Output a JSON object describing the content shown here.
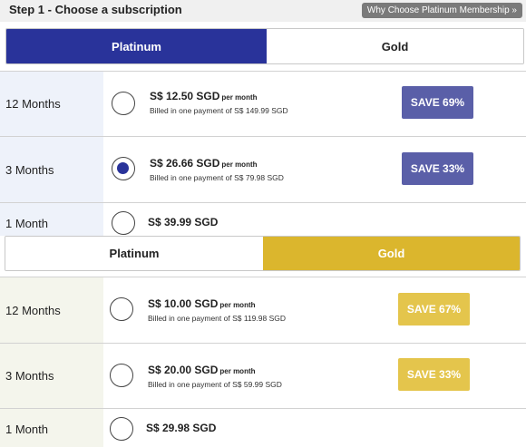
{
  "header": {
    "title": "Step 1 - Choose a subscription",
    "why_button": "Why Choose Platinum Membership »"
  },
  "platinum_section": {
    "tabs": [
      {
        "label": "Platinum",
        "selected": true
      },
      {
        "label": "Gold",
        "selected": false
      }
    ],
    "plans": [
      {
        "term": "12 Months",
        "price": "S$ 12.50 SGD",
        "per": "per month",
        "billed": "Billed in one payment of S$ 149.99 SGD",
        "save": "SAVE 69%",
        "selected": false
      },
      {
        "term": "3 Months",
        "price": "S$ 26.66 SGD",
        "per": "per month",
        "billed": "Billed in one payment of S$ 79.98 SGD",
        "save": "SAVE 33%",
        "selected": true
      },
      {
        "term": "1 Month",
        "price": "S$ 39.99 SGD",
        "selected": false
      }
    ]
  },
  "gold_section": {
    "tabs": [
      {
        "label": "Platinum",
        "selected": false
      },
      {
        "label": "Gold",
        "selected": true
      }
    ],
    "plans": [
      {
        "term": "12 Months",
        "price": "S$ 10.00 SGD",
        "per": "per month",
        "billed": "Billed in one payment of S$ 119.98 SGD",
        "save": "SAVE 67%",
        "selected": false
      },
      {
        "term": "3 Months",
        "price": "S$ 20.00 SGD",
        "per": "per month",
        "billed": "Billed in one payment of S$ 59.99 SGD",
        "save": "SAVE 33%",
        "selected": false
      },
      {
        "term": "1 Month",
        "price": "S$ 29.98 SGD",
        "selected": false
      }
    ]
  },
  "colors": {
    "platinum_accent": "#29339a",
    "platinum_save": "#5a5fa8",
    "gold_accent": "#dbb62d",
    "gold_save": "#e4c54c"
  }
}
